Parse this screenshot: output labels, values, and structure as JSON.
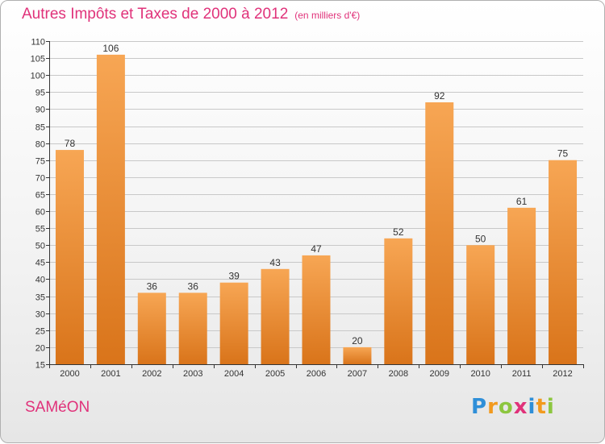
{
  "title": "Autres Impôts et Taxes de 2000 à 2012",
  "subtitle": "(en milliers d'€)",
  "commune": "SAMéON",
  "logo_letters": [
    "P",
    "r",
    "o",
    "x",
    "i",
    "t",
    "i"
  ],
  "colors": {
    "title": "#e0327a",
    "bar_light": "#f7a654",
    "bar_dark": "#d9741a",
    "grid": "#c8c8c8"
  },
  "chart_data": {
    "type": "bar",
    "title": "Autres Impôts et Taxes de 2000 à 2012",
    "subtitle": "(en milliers d'€)",
    "categories": [
      "2000",
      "2001",
      "2002",
      "2003",
      "2004",
      "2005",
      "2006",
      "2007",
      "2008",
      "2009",
      "2010",
      "2011",
      "2012"
    ],
    "values": [
      78,
      106,
      36,
      36,
      39,
      43,
      47,
      20,
      52,
      92,
      50,
      61,
      75
    ],
    "ylim": [
      15,
      110
    ],
    "yticks": [
      15,
      20,
      25,
      30,
      35,
      40,
      45,
      50,
      55,
      60,
      65,
      70,
      75,
      80,
      85,
      90,
      95,
      100,
      105,
      110
    ],
    "grid": true,
    "data_labels": true
  }
}
